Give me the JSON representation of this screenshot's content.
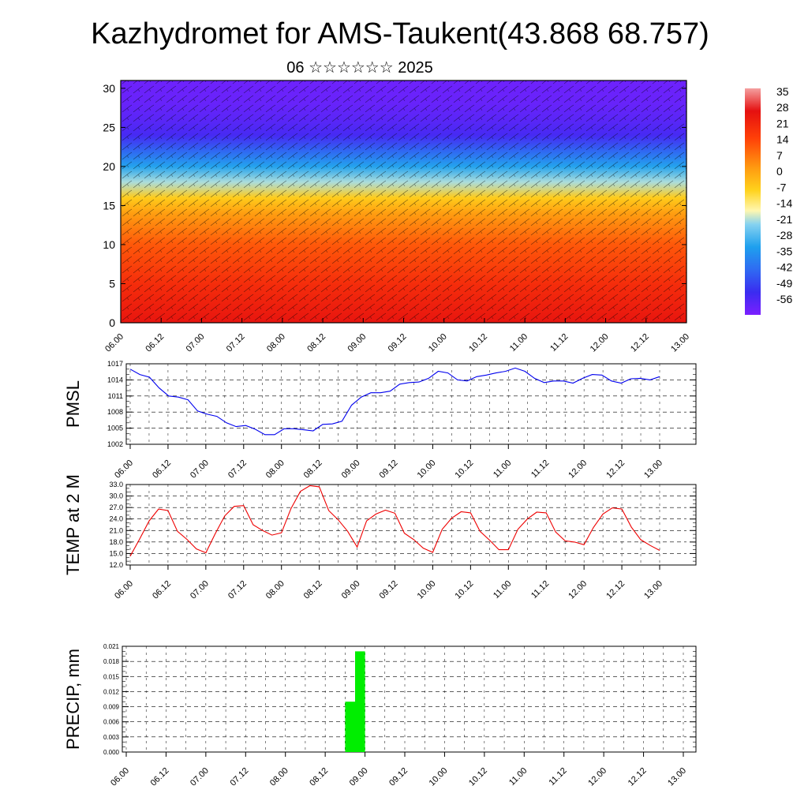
{
  "page": {
    "title": "Kazhydromet for AMS-Taukent(43.868 68.757)",
    "subtitle": "06 ☆☆☆☆☆☆ 2025"
  },
  "time_ticks": [
    "06.00",
    "06.12",
    "07.00",
    "07.12",
    "08.00",
    "08.12",
    "09.00",
    "09.12",
    "10.00",
    "10.12",
    "11.00",
    "11.12",
    "12.00",
    "12.12",
    "13.00"
  ],
  "chart_data": [
    {
      "type": "heatmap",
      "title": "",
      "x_ticks": [
        "06.00",
        "06.12",
        "07.00",
        "07.12",
        "08.00",
        "08.12",
        "09.00",
        "09.12",
        "10.00",
        "10.12",
        "11.00",
        "11.12",
        "12.00",
        "12.12",
        "13.00"
      ],
      "ylim": [
        0,
        31
      ],
      "y_ticks": [
        0,
        5,
        10,
        15,
        20,
        25,
        30
      ],
      "colorbar": {
        "labels": [
          "35",
          "28",
          "21",
          "14",
          "7",
          "0",
          "-7",
          "-14",
          "-21",
          "-28",
          "-35",
          "-42",
          "-49",
          "-56"
        ],
        "range": [
          -63,
          35
        ]
      },
      "profile": [
        {
          "y": 0,
          "value": 24
        },
        {
          "y": 5,
          "value": 18
        },
        {
          "y": 10,
          "value": 10
        },
        {
          "y": 14,
          "value": 0
        },
        {
          "y": 16,
          "value": -8
        },
        {
          "y": 18,
          "value": -22
        },
        {
          "y": 20,
          "value": -33
        },
        {
          "y": 22,
          "value": -44
        },
        {
          "y": 24,
          "value": -55
        },
        {
          "y": 26,
          "value": -58
        },
        {
          "y": 28,
          "value": -60
        },
        {
          "y": 31,
          "value": -61
        }
      ],
      "overlay": "wind barbs"
    },
    {
      "type": "line",
      "ylabel": "PMSL",
      "ylim": [
        1002,
        1017
      ],
      "y_ticks": [
        "1002",
        "1005",
        "1008",
        "1011",
        "1014",
        "1017"
      ],
      "color": "#0000ee",
      "series": [
        {
          "values": [
            1016,
            1015,
            1014.5,
            1012.5,
            1011,
            1010.8,
            1010.3,
            1008.2,
            1007.6,
            1007.2,
            1006,
            1005.3,
            1005.5,
            1004.8,
            1003.8,
            1003.8,
            1004.9,
            1004.9,
            1004.7,
            1004.5,
            1005.7,
            1005.8,
            1006.3,
            1009.3,
            1010.8,
            1011.6,
            1011.6,
            1011.9,
            1013.2,
            1013.5,
            1013.6,
            1014.3,
            1015.6,
            1015.3,
            1014,
            1013.8,
            1014.6,
            1014.9,
            1015.3,
            1015.6,
            1016.2,
            1015.6,
            1014.3,
            1013.5,
            1013.8,
            1013.8,
            1013.4,
            1014.3,
            1015,
            1014.9,
            1013.8,
            1013.4,
            1014.2,
            1014.3,
            1014,
            1014.6
          ]
        }
      ]
    },
    {
      "type": "line",
      "ylabel": "TEMP at 2 M",
      "ylim": [
        12,
        33
      ],
      "y_ticks": [
        "12.0",
        "15.0",
        "18.0",
        "21.0",
        "24.0",
        "27.0",
        "30.0",
        "33.0"
      ],
      "color": "#ee0000",
      "series": [
        {
          "values": [
            14.3,
            18.8,
            23.5,
            26.6,
            26.2,
            20.8,
            18.7,
            16.2,
            15.2,
            20.2,
            24.8,
            27.3,
            27.5,
            22.5,
            21,
            19.8,
            20.4,
            26.7,
            31.2,
            32.7,
            32.4,
            26.2,
            23.8,
            20.8,
            16.7,
            23.5,
            25.3,
            26.3,
            25.5,
            20.3,
            18.6,
            16.4,
            15.3,
            21.3,
            24.2,
            25.9,
            25.6,
            20.8,
            18.5,
            16,
            16,
            21.3,
            24,
            25.8,
            25.6,
            20.6,
            18.3,
            18,
            17.3,
            21.8,
            25.3,
            26.9,
            26.6,
            21.9,
            18.6,
            17.1,
            15.8
          ]
        }
      ]
    },
    {
      "type": "bar",
      "ylabel": "PRECIP, mm",
      "ylim": [
        0,
        0.021
      ],
      "y_ticks": [
        "0.000",
        "0.003",
        "0.006",
        "0.009",
        "0.012",
        "0.015",
        "0.018",
        "0.021"
      ],
      "color": "#00ee00",
      "bars": [
        {
          "slot": 22,
          "value": 0.01
        },
        {
          "slot": 23,
          "value": 0.02
        }
      ]
    }
  ]
}
